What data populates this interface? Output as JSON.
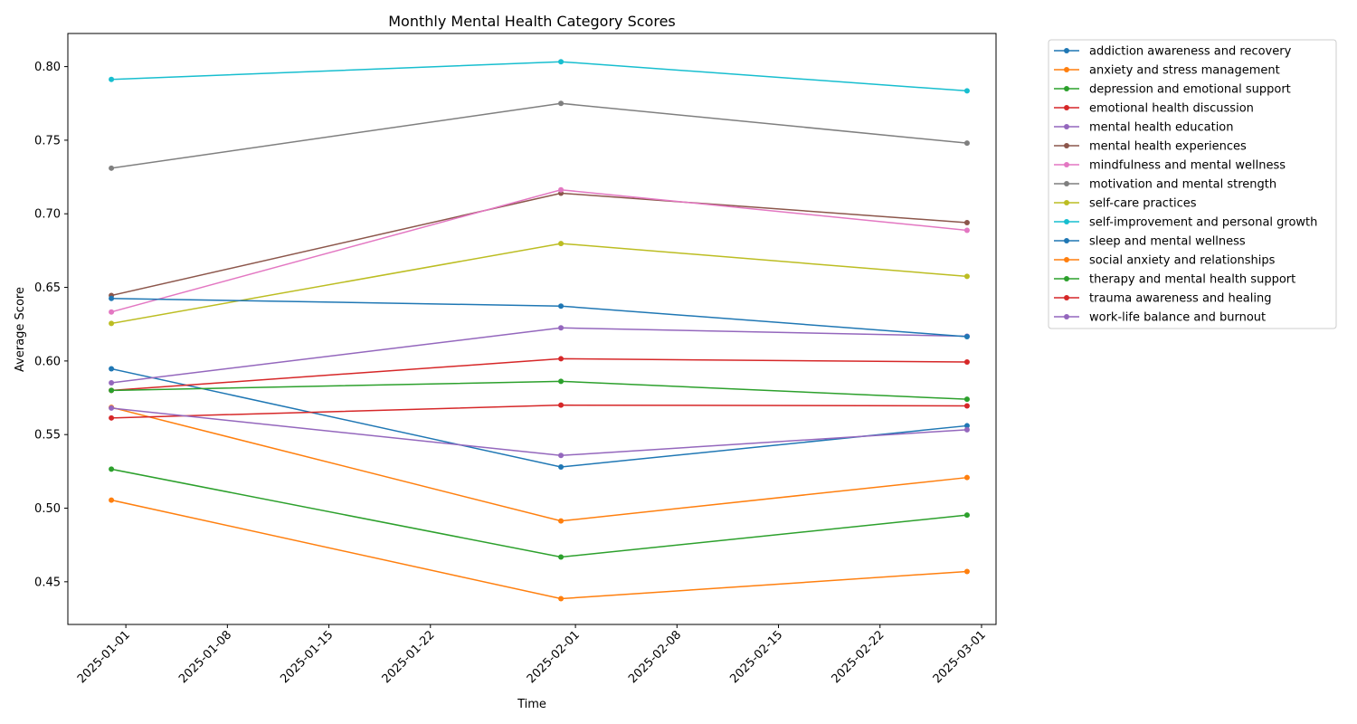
{
  "chart_data": {
    "type": "line",
    "title": "Monthly Mental Health Category Scores",
    "xlabel": "Time",
    "ylabel": "Average Score",
    "x": [
      "2024-12-31",
      "2025-01-31",
      "2025-02-28"
    ],
    "x_ticks": [
      "2025-01-01",
      "2025-01-08",
      "2025-01-15",
      "2025-01-22",
      "2025-02-01",
      "2025-02-08",
      "2025-02-15",
      "2025-02-22",
      "2025-03-01"
    ],
    "y_ticks": [
      0.45,
      0.5,
      0.55,
      0.6,
      0.65,
      0.7,
      0.75,
      0.8
    ],
    "y_tick_labels": [
      "0.45",
      "0.50",
      "0.55",
      "0.60",
      "0.65",
      "0.70",
      "0.75",
      "0.80"
    ],
    "ylim": [
      0.421,
      0.8225
    ],
    "xlim": [
      "2024-12-28",
      "2025-03-02"
    ],
    "grid": false,
    "legend_position": "outside-right",
    "series": [
      {
        "name": "addiction awareness and recovery",
        "color": "#1f77b4",
        "values": [
          0.5947,
          0.528,
          0.556
        ]
      },
      {
        "name": "anxiety and stress management",
        "color": "#ff7f0e",
        "values": [
          0.5055,
          0.4385,
          0.457
        ]
      },
      {
        "name": "depression and emotional support",
        "color": "#2ca02c",
        "values": [
          0.5265,
          0.4668,
          0.4953
        ]
      },
      {
        "name": "emotional health discussion",
        "color": "#d62728",
        "values": [
          0.58,
          0.6015,
          0.5993
        ]
      },
      {
        "name": "mental health education",
        "color": "#9467bd",
        "values": [
          0.5852,
          0.6225,
          0.6168
        ]
      },
      {
        "name": "mental health experiences",
        "color": "#8c564b",
        "values": [
          0.6445,
          0.714,
          0.694
        ]
      },
      {
        "name": "mindfulness and mental wellness",
        "color": "#e377c2",
        "values": [
          0.6333,
          0.7163,
          0.6888
        ]
      },
      {
        "name": "motivation and mental strength",
        "color": "#7f7f7f",
        "values": [
          0.731,
          0.775,
          0.748
        ]
      },
      {
        "name": "self-care practices",
        "color": "#bcbd22",
        "values": [
          0.6255,
          0.6798,
          0.6575
        ]
      },
      {
        "name": "self-improvement and personal growth",
        "color": "#17becf",
        "values": [
          0.7913,
          0.8033,
          0.7835
        ]
      },
      {
        "name": "sleep and mental wellness",
        "color": "#1f77b4",
        "values": [
          0.6425,
          0.6373,
          0.6165
        ]
      },
      {
        "name": "social anxiety and relationships",
        "color": "#ff7f0e",
        "values": [
          0.5685,
          0.4913,
          0.5208
        ]
      },
      {
        "name": "therapy and mental health support",
        "color": "#2ca02c",
        "values": [
          0.58,
          0.5862,
          0.574
        ]
      },
      {
        "name": "trauma awareness and healing",
        "color": "#d62728",
        "values": [
          0.5613,
          0.57,
          0.5695
        ]
      },
      {
        "name": "work-life balance and burnout",
        "color": "#9467bd",
        "values": [
          0.568,
          0.5358,
          0.5533
        ]
      }
    ]
  }
}
